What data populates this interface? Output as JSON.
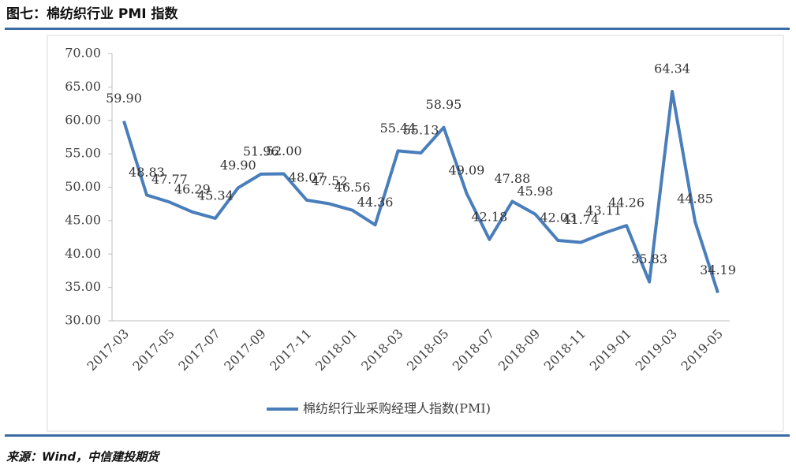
{
  "chart_data": {
    "type": "line",
    "title": "图七：棉纺织行业 PMI 指数",
    "source": "来源：Wind，中信建投期货",
    "categories": [
      "2017-03",
      null,
      "2017-05",
      null,
      "2017-07",
      null,
      "2017-09",
      null,
      "2017-11",
      null,
      "2018-01",
      null,
      "2018-03",
      null,
      "2018-05",
      null,
      "2018-07",
      null,
      "2018-09",
      null,
      "2018-11",
      null,
      "2019-01",
      null,
      "2019-03",
      null,
      "2019-05"
    ],
    "series": [
      {
        "name": "棉纺织行业采购经理人指数(PMI)",
        "color": "#4a7ebb",
        "values": [
          59.9,
          48.83,
          47.77,
          46.29,
          45.34,
          49.9,
          51.96,
          52.0,
          48.07,
          47.52,
          46.56,
          44.36,
          55.44,
          55.13,
          58.95,
          49.09,
          42.18,
          47.88,
          45.98,
          42.03,
          41.74,
          43.11,
          44.26,
          35.83,
          64.34,
          44.85,
          34.19
        ],
        "value_labels": [
          "59.90",
          "48.83",
          "47.77",
          "46.29",
          "45.34",
          "49.90",
          "51.96",
          "52.00",
          "48.07",
          "47.52",
          "46.56",
          "44.36",
          "55.44",
          "55.13",
          "58.95",
          "49.09",
          "42.18",
          "47.88",
          "45.98",
          "42.03",
          "41.74",
          "43.11",
          "44.26",
          "35.83",
          "64.34",
          "44.85",
          "34.19"
        ]
      }
    ],
    "ylim": [
      30,
      70
    ],
    "yticks": [
      {
        "value": 30,
        "label": "30.00"
      },
      {
        "value": 35,
        "label": "35.00"
      },
      {
        "value": 40,
        "label": "40.00"
      },
      {
        "value": 45,
        "label": "45.00"
      },
      {
        "value": 50,
        "label": "50.00"
      },
      {
        "value": 55,
        "label": "55.00"
      },
      {
        "value": 60,
        "label": "60.00"
      },
      {
        "value": 65,
        "label": "65.00"
      },
      {
        "value": 70,
        "label": "70.00"
      }
    ],
    "legend": "bottom"
  }
}
